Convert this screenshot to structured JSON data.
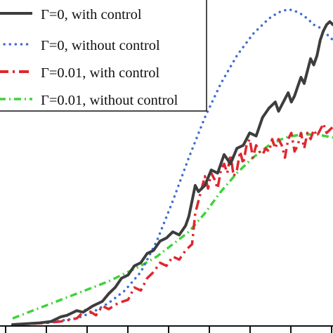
{
  "chart_data": {
    "type": "line",
    "title": "",
    "xlabel": "",
    "ylabel": "",
    "xlim": [
      0,
      1
    ],
    "ylim": [
      0,
      1
    ],
    "grid": false,
    "legend_position": "top-left",
    "series": [
      {
        "name": "Γ=0, with control",
        "color": "#3d3d3d",
        "dash": "solid",
        "x": [
          0.0,
          0.08,
          0.12,
          0.15,
          0.17,
          0.19,
          0.2,
          0.22,
          0.25,
          0.28,
          0.3,
          0.32,
          0.34,
          0.36,
          0.38,
          0.4,
          0.42,
          0.44,
          0.46,
          0.48,
          0.5,
          0.52,
          0.54,
          0.55,
          0.56,
          0.57,
          0.58,
          0.6,
          0.62,
          0.64,
          0.66,
          0.68,
          0.7,
          0.72,
          0.74,
          0.76,
          0.78,
          0.8,
          0.82,
          0.83,
          0.84,
          0.85,
          0.86,
          0.87,
          0.88,
          0.89,
          0.9,
          0.91,
          0.92,
          0.93,
          0.94,
          0.95,
          0.96,
          0.97,
          0.98,
          0.99,
          1.0
        ],
        "y": [
          0.0,
          0.005,
          0.01,
          0.025,
          0.03,
          0.04,
          0.045,
          0.04,
          0.06,
          0.075,
          0.1,
          0.12,
          0.15,
          0.16,
          0.19,
          0.2,
          0.23,
          0.24,
          0.27,
          0.28,
          0.3,
          0.29,
          0.32,
          0.35,
          0.4,
          0.45,
          0.43,
          0.45,
          0.5,
          0.49,
          0.55,
          0.52,
          0.57,
          0.58,
          0.62,
          0.61,
          0.67,
          0.7,
          0.72,
          0.69,
          0.71,
          0.73,
          0.75,
          0.72,
          0.74,
          0.77,
          0.8,
          0.78,
          0.82,
          0.86,
          0.84,
          0.87,
          0.92,
          0.95,
          0.97,
          0.98,
          0.97
        ]
      },
      {
        "name": "Γ=0, without control",
        "color": "#3f6ed0",
        "dash": "dotted",
        "x": [
          0.0,
          0.1,
          0.2,
          0.25,
          0.3,
          0.35,
          0.4,
          0.45,
          0.5,
          0.55,
          0.6,
          0.65,
          0.7,
          0.75,
          0.8,
          0.83,
          0.86,
          0.88,
          0.9,
          0.92,
          0.94,
          0.96,
          0.98,
          1.0
        ],
        "y": [
          0.0,
          0.005,
          0.02,
          0.04,
          0.07,
          0.11,
          0.17,
          0.27,
          0.4,
          0.54,
          0.67,
          0.78,
          0.87,
          0.94,
          0.99,
          1.01,
          1.02,
          1.015,
          1.005,
          0.99,
          0.97,
          0.96,
          0.94,
          0.92
        ]
      },
      {
        "name": "Γ=0.01, with control",
        "color": "#e0262f",
        "dash": "dashdot",
        "x": [
          0.0,
          0.1,
          0.15,
          0.2,
          0.23,
          0.26,
          0.28,
          0.3,
          0.33,
          0.36,
          0.38,
          0.4,
          0.42,
          0.44,
          0.46,
          0.48,
          0.5,
          0.52,
          0.54,
          0.56,
          0.57,
          0.58,
          0.6,
          0.61,
          0.62,
          0.63,
          0.64,
          0.65,
          0.66,
          0.67,
          0.68,
          0.69,
          0.7,
          0.71,
          0.72,
          0.73,
          0.74,
          0.75,
          0.76,
          0.77,
          0.78,
          0.79,
          0.8,
          0.81,
          0.82,
          0.83,
          0.84,
          0.85,
          0.86,
          0.87,
          0.88,
          0.89,
          0.9,
          0.91,
          0.92,
          0.93,
          0.94,
          0.95,
          0.96,
          0.97,
          0.98,
          1.0
        ],
        "y": [
          0.0,
          0.005,
          0.01,
          0.02,
          0.05,
          0.03,
          0.06,
          0.05,
          0.07,
          0.08,
          0.12,
          0.11,
          0.15,
          0.17,
          0.2,
          0.19,
          0.22,
          0.21,
          0.24,
          0.26,
          0.36,
          0.4,
          0.48,
          0.44,
          0.49,
          0.47,
          0.44,
          0.5,
          0.52,
          0.49,
          0.55,
          0.48,
          0.5,
          0.56,
          0.52,
          0.58,
          0.6,
          0.54,
          0.58,
          0.56,
          0.55,
          0.57,
          0.56,
          0.6,
          0.57,
          0.6,
          0.58,
          0.54,
          0.6,
          0.62,
          0.56,
          0.58,
          0.62,
          0.57,
          0.62,
          0.6,
          0.63,
          0.61,
          0.63,
          0.65,
          0.62,
          0.64
        ]
      },
      {
        "name": "Γ=0.01, without control",
        "color": "#3fd33a",
        "dash": "dashdot",
        "x": [
          0.0,
          0.1,
          0.2,
          0.3,
          0.4,
          0.45,
          0.5,
          0.55,
          0.6,
          0.65,
          0.7,
          0.75,
          0.8,
          0.85,
          0.9,
          0.95,
          1.0
        ],
        "y": [
          0.02,
          0.06,
          0.1,
          0.14,
          0.19,
          0.22,
          0.26,
          0.3,
          0.36,
          0.43,
          0.49,
          0.54,
          0.58,
          0.605,
          0.615,
          0.615,
          0.605
        ]
      }
    ]
  }
}
